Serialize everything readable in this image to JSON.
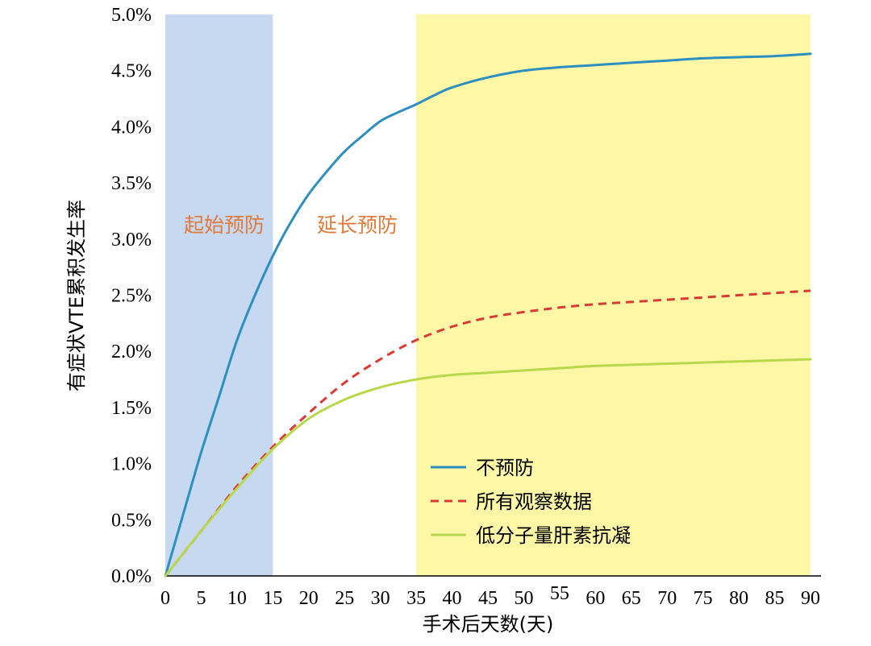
{
  "chart_data": {
    "type": "line",
    "xlabel": "手术后天数(天)",
    "ylabel": "有症状VTE累积发生率",
    "xlim": [
      0,
      90
    ],
    "ylim": [
      0,
      5
    ],
    "x_ticks": [
      "0",
      "5",
      "10",
      "15",
      "20",
      "25",
      "30",
      "35",
      "40",
      "45",
      "50",
      "55",
      "60",
      "65",
      "70",
      "75",
      "80",
      "85",
      "90"
    ],
    "y_ticks": [
      "0.0%",
      "0.5%",
      "1.0%",
      "1.5%",
      "2.0%",
      "2.5%",
      "3.0%",
      "3.5%",
      "4.0%",
      "4.5%",
      "5.0%"
    ],
    "regions": [
      {
        "label": "起始预防",
        "from": 0,
        "to": 15,
        "color": "#c6d9f1",
        "label_color": "#e07a3a"
      },
      {
        "label": "延长预防",
        "from": 35,
        "to": 90,
        "color": "#fdf7a6",
        "label_color": "#e07a3a"
      }
    ],
    "series": [
      {
        "name": "不预防",
        "color": "#2d8fc1",
        "style": "solid",
        "points": [
          [
            0,
            0
          ],
          [
            2.5,
            0.55
          ],
          [
            5,
            1.1
          ],
          [
            7.5,
            1.6
          ],
          [
            10,
            2.1
          ],
          [
            12.5,
            2.5
          ],
          [
            15,
            2.85
          ],
          [
            17.5,
            3.15
          ],
          [
            20,
            3.4
          ],
          [
            22.5,
            3.6
          ],
          [
            25,
            3.78
          ],
          [
            27.5,
            3.92
          ],
          [
            30,
            4.05
          ],
          [
            32.5,
            4.13
          ],
          [
            35,
            4.2
          ],
          [
            37.5,
            4.28
          ],
          [
            40,
            4.35
          ],
          [
            45,
            4.44
          ],
          [
            50,
            4.5
          ],
          [
            55,
            4.53
          ],
          [
            60,
            4.55
          ],
          [
            65,
            4.57
          ],
          [
            70,
            4.59
          ],
          [
            75,
            4.61
          ],
          [
            80,
            4.62
          ],
          [
            85,
            4.63
          ],
          [
            90,
            4.65
          ]
        ]
      },
      {
        "name": "所有观察数据",
        "color": "#d93a35",
        "style": "dashed",
        "points": [
          [
            0,
            0
          ],
          [
            5,
            0.4
          ],
          [
            10,
            0.8
          ],
          [
            15,
            1.15
          ],
          [
            20,
            1.45
          ],
          [
            25,
            1.72
          ],
          [
            30,
            1.93
          ],
          [
            35,
            2.1
          ],
          [
            40,
            2.22
          ],
          [
            45,
            2.3
          ],
          [
            50,
            2.35
          ],
          [
            55,
            2.39
          ],
          [
            60,
            2.42
          ],
          [
            65,
            2.44
          ],
          [
            70,
            2.46
          ],
          [
            75,
            2.48
          ],
          [
            80,
            2.5
          ],
          [
            85,
            2.52
          ],
          [
            90,
            2.54
          ]
        ]
      },
      {
        "name": "低分子量肝素抗凝",
        "color": "#b8d84a",
        "style": "solid",
        "points": [
          [
            0,
            0
          ],
          [
            5,
            0.4
          ],
          [
            10,
            0.78
          ],
          [
            15,
            1.13
          ],
          [
            20,
            1.4
          ],
          [
            25,
            1.57
          ],
          [
            30,
            1.68
          ],
          [
            35,
            1.75
          ],
          [
            40,
            1.79
          ],
          [
            45,
            1.81
          ],
          [
            50,
            1.83
          ],
          [
            55,
            1.85
          ],
          [
            60,
            1.87
          ],
          [
            65,
            1.88
          ],
          [
            70,
            1.89
          ],
          [
            75,
            1.9
          ],
          [
            80,
            1.91
          ],
          [
            85,
            1.92
          ],
          [
            90,
            1.93
          ]
        ]
      }
    ],
    "legend_placement": "bottom-right"
  }
}
